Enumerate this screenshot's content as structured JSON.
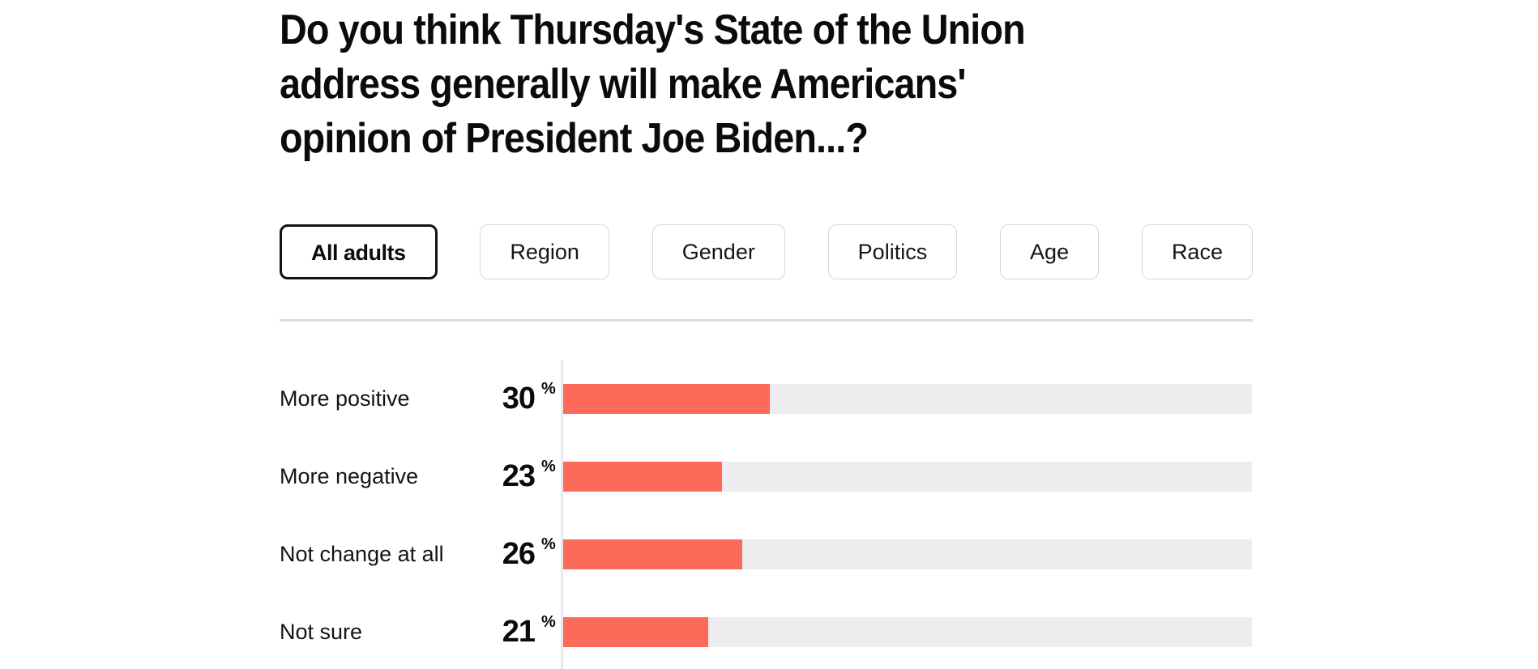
{
  "title": {
    "full": "Do you think Thursday's State of the Union address generally will make Americans' opinion of President Joe Biden...?",
    "lines": [
      "Do you think Thursday's State of the Union",
      "address generally will make Americans'",
      "opinion of President Joe Biden...?"
    ]
  },
  "filter_tabs": {
    "items": [
      {
        "label": "All adults",
        "selected": true
      },
      {
        "label": "Region",
        "selected": false
      },
      {
        "label": "Gender",
        "selected": false
      },
      {
        "label": "Politics",
        "selected": false
      },
      {
        "label": "Age",
        "selected": false
      },
      {
        "label": "Race",
        "selected": false
      }
    ]
  },
  "chart_data": {
    "type": "bar",
    "orientation": "horizontal",
    "categories": [
      "More positive",
      "More negative",
      "Not change at all",
      "Not sure"
    ],
    "values": [
      30,
      23,
      26,
      21
    ],
    "unit": "%",
    "xlim": [
      0,
      100
    ],
    "grid": false,
    "value_labels": true,
    "bar_color": "#fc6a59",
    "track_color": "#ededf0"
  }
}
